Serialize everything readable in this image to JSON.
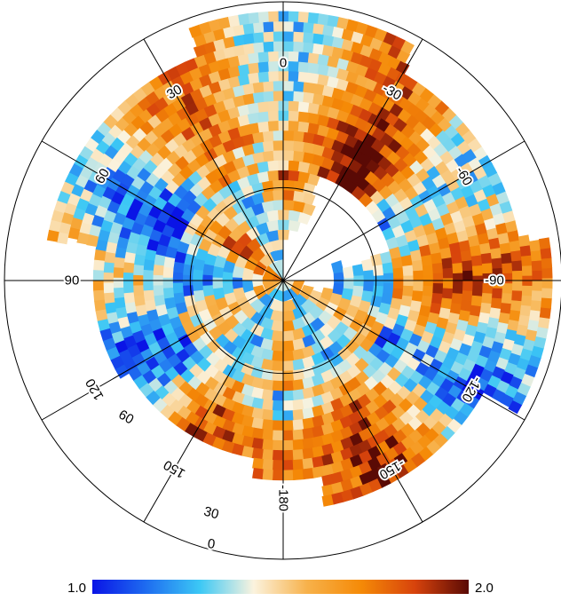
{
  "chart_data": {
    "type": "heatmap",
    "projection": "polar",
    "colormap": {
      "min": 1.0,
      "max": 2.0,
      "min_label": "1.0",
      "max_label": "2.0",
      "stops": [
        "#0a14e6",
        "#1e6cf0",
        "#3cc8f5",
        "#fbf3de",
        "#f7b14a",
        "#f58a07",
        "#d7430c",
        "#5a0a05"
      ]
    },
    "radial_grid": {
      "circles_deg": [
        30,
        90
      ],
      "spoke_angles_deg": [
        0,
        30,
        60,
        90,
        120,
        150,
        180,
        -150,
        -120,
        -90,
        -60,
        -30
      ]
    },
    "angle_labels": [
      "0",
      "30",
      "60",
      "90",
      "120",
      "150",
      "-180",
      "-150",
      "-120",
      "-90",
      "-60",
      "-30"
    ],
    "radius_labels": [
      "60",
      "30",
      "0"
    ],
    "data_extent_deg": [
      10,
      90
    ],
    "pattern": "six-fold symmetric: low values (blue) in sectors near 90/-90 and 0 inner ring, high values (orange/dark red) near ±30, ±150 and at 180 mid-radius"
  }
}
